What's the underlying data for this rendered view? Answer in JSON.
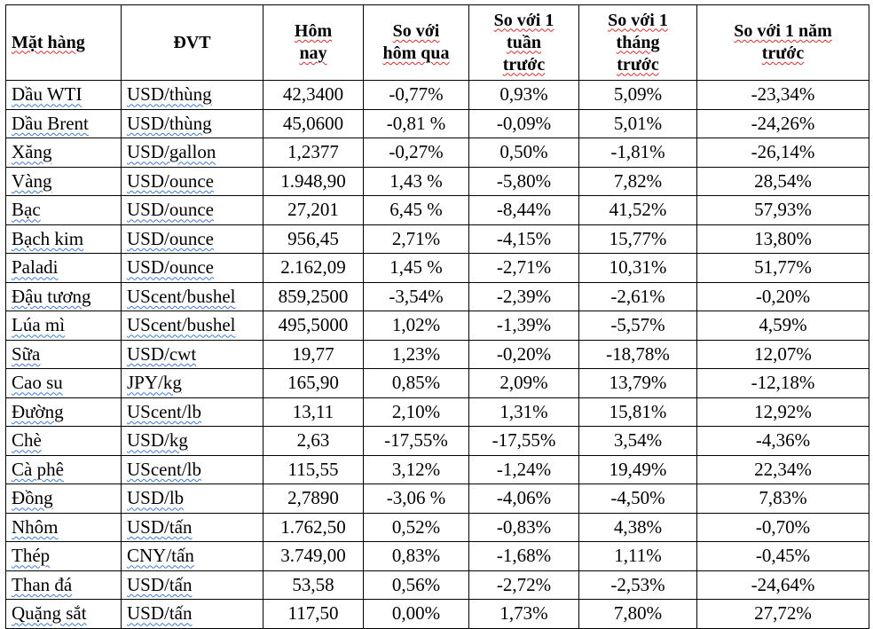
{
  "headers": {
    "name": "Mặt hàng",
    "unit": "ĐVT",
    "today": [
      "Hôm",
      "nay"
    ],
    "vs_yesterday": [
      "So với",
      "hôm qua"
    ],
    "vs_week": [
      "So với 1",
      "tuần",
      "trước"
    ],
    "vs_month": [
      "So với 1",
      "tháng",
      "trước"
    ],
    "vs_year": [
      "So với 1 năm",
      "trước"
    ]
  },
  "rows": [
    {
      "name": "Dầu WTI",
      "unit": "USD/thùng",
      "today": "42,3400",
      "d": "-0,77%",
      "w": "0,93%",
      "m": "5,09%",
      "y": "-23,34%"
    },
    {
      "name": "Dầu Brent",
      "unit": "USD/thùng",
      "today": "45,0600",
      "d": "-0,81 %",
      "w": "-0,09%",
      "m": "5,01%",
      "y": "-24,26%"
    },
    {
      "name": "Xăng",
      "unit": "USD/gallon",
      "today": "1,2377",
      "d": "-0,27%",
      "w": "0,50%",
      "m": "-1,81%",
      "y": "-26,14%"
    },
    {
      "name": "Vàng",
      "unit": "USD/ounce",
      "today": "1.948,90",
      "d": "1,43 %",
      "w": "-5,80%",
      "m": "7,82%",
      "y": "28,54%"
    },
    {
      "name": "Bạc",
      "unit": "USD/ounce",
      "today": "27,201",
      "d": "6,45 %",
      "w": "-8,44%",
      "m": "41,52%",
      "y": "57,93%"
    },
    {
      "name": "Bạch kim",
      "unit": "USD/ounce",
      "today": "956,45",
      "d": "2,71%",
      "w": "-4,15%",
      "m": "15,77%",
      "y": "13,80%"
    },
    {
      "name": "Paladi",
      "unit": "USD/ounce",
      "today": "2.162,09",
      "d": "1,45 %",
      "w": "-2,71%",
      "m": "10,31%",
      "y": "51,77%"
    },
    {
      "name": "Đậu tương",
      "unit": "UScent/bushel",
      "today": "859,2500",
      "d": "-3,54%",
      "w": "-2,39%",
      "m": "-2,61%",
      "y": "-0,20%"
    },
    {
      "name": "Lúa mì",
      "unit": "UScent/bushel",
      "today": "495,5000",
      "d": "1,02%",
      "w": "-1,39%",
      "m": "-5,57%",
      "y": "4,59%"
    },
    {
      "name": "Sữa",
      "unit": "USD/cwt",
      "today": "19,77",
      "d": "1,23%",
      "w": "-0,20%",
      "m": "-18,78%",
      "y": "12,07%"
    },
    {
      "name": "Cao su",
      "unit": "JPY/kg",
      "today": "165,90",
      "d": "0,85%",
      "w": "2,09%",
      "m": "13,79%",
      "y": "-12,18%"
    },
    {
      "name": "Đường",
      "unit": "UScent/lb",
      "today": "13,11",
      "d": "2,10%",
      "w": "1,31%",
      "m": "15,81%",
      "y": "12,92%"
    },
    {
      "name": "Chè",
      "unit": "USD/kg",
      "today": "2,63",
      "d": "-17,55%",
      "w": "-17,55%",
      "m": "3,54%",
      "y": "-4,36%"
    },
    {
      "name": "Cà phê",
      "unit": "UScent/lb",
      "today": "115,55",
      "d": "3,12%",
      "w": "-1,24%",
      "m": "19,49%",
      "y": "22,34%"
    },
    {
      "name": "Đồng",
      "unit": "USD/lb",
      "today": "2,7890",
      "d": "-3,06 %",
      "w": "-4,06%",
      "m": "-4,50%",
      "y": "7,83%"
    },
    {
      "name": "Nhôm",
      "unit": "USD/tấn",
      "today": "1.762,50",
      "d": "0,52%",
      "w": "-0,83%",
      "m": "4,38%",
      "y": "-0,70%"
    },
    {
      "name": "Thép",
      "unit": "CNY/tấn",
      "today": "3.749,00",
      "d": "0,83%",
      "w": "-1,68%",
      "m": "1,11%",
      "y": "-0,45%"
    },
    {
      "name": "Than đá",
      "unit": "USD/tấn",
      "today": "53,58",
      "d": "0,56%",
      "w": "-2,72%",
      "m": "-2,53%",
      "y": "-24,64%"
    },
    {
      "name": "Quặng sắt",
      "unit": "USD/tấn",
      "today": "117,50",
      "d": "0,00%",
      "w": "1,73%",
      "m": "7,80%",
      "y": "27,72%"
    }
  ]
}
